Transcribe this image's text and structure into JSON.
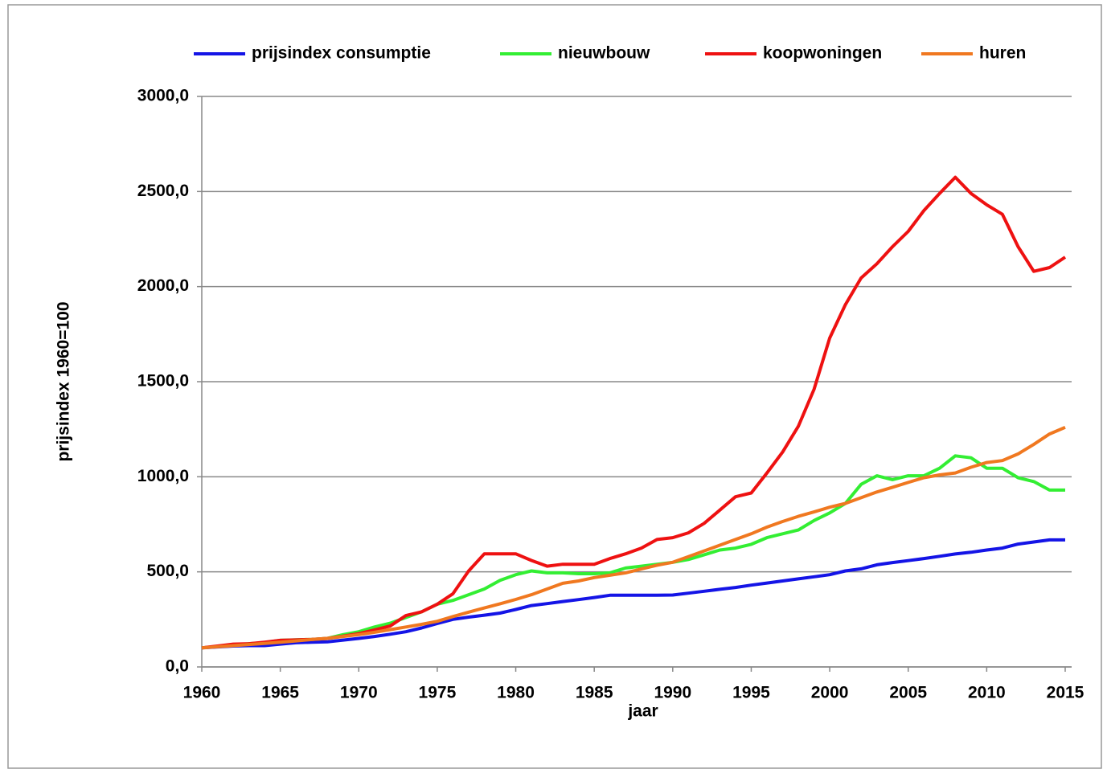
{
  "chart_data": {
    "type": "line",
    "xlabel": "jaar",
    "ylabel": "prijsindex 1960=100",
    "x": [
      1960,
      1961,
      1962,
      1963,
      1964,
      1965,
      1966,
      1967,
      1968,
      1969,
      1970,
      1971,
      1972,
      1973,
      1974,
      1975,
      1976,
      1977,
      1978,
      1979,
      1980,
      1981,
      1982,
      1983,
      1984,
      1985,
      1986,
      1987,
      1988,
      1989,
      1990,
      1991,
      1992,
      1993,
      1994,
      1995,
      1996,
      1997,
      1998,
      1999,
      2000,
      2001,
      2002,
      2003,
      2004,
      2005,
      2006,
      2007,
      2008,
      2009,
      2010,
      2011,
      2012,
      2013,
      2014,
      2015
    ],
    "series": [
      {
        "name": "prijsindex consumptie",
        "color": "#1414e6",
        "values": [
          100,
          105,
          110,
          112,
          112,
          120,
          127,
          130,
          132,
          141,
          150,
          160,
          172,
          185,
          205,
          228,
          250,
          262,
          272,
          283,
          302,
          323,
          333,
          344,
          354,
          365,
          377,
          377,
          377,
          377,
          378,
          388,
          398,
          408,
          418,
          430,
          441,
          452,
          463,
          474,
          485,
          505,
          516,
          537,
          549,
          559,
          570,
          582,
          594,
          603,
          615,
          625,
          646,
          657,
          668,
          668
        ]
      },
      {
        "name": "nieuwbouw",
        "color": "#33ee33",
        "values": [
          100,
          108,
          115,
          122,
          128,
          140,
          143,
          145,
          150,
          170,
          185,
          210,
          230,
          260,
          290,
          330,
          350,
          380,
          410,
          455,
          485,
          505,
          495,
          495,
          490,
          490,
          495,
          520,
          530,
          540,
          550,
          565,
          590,
          615,
          625,
          645,
          680,
          700,
          720,
          770,
          810,
          860,
          960,
          1005,
          985,
          1005,
          1005,
          1045,
          1110,
          1100,
          1045,
          1045,
          995,
          975,
          930,
          930
        ]
      },
      {
        "name": "koopwoningen",
        "color": "#ee1111",
        "values": [
          100,
          110,
          120,
          122,
          130,
          140,
          142,
          145,
          150,
          162,
          175,
          195,
          215,
          270,
          290,
          330,
          385,
          505,
          595,
          595,
          595,
          560,
          530,
          540,
          540,
          540,
          570,
          595,
          625,
          670,
          680,
          705,
          755,
          825,
          895,
          915,
          1020,
          1130,
          1265,
          1460,
          1730,
          1905,
          2045,
          2120,
          2210,
          2290,
          2400,
          2490,
          2575,
          2490,
          2430,
          2380,
          2210,
          2080,
          2100,
          2155
        ]
      },
      {
        "name": "huren",
        "color": "#f07820",
        "values": [
          100,
          106,
          112,
          118,
          124,
          130,
          137,
          144,
          150,
          160,
          170,
          182,
          196,
          210,
          224,
          240,
          265,
          288,
          310,
          332,
          355,
          380,
          410,
          440,
          452,
          470,
          482,
          495,
          515,
          535,
          550,
          580,
          610,
          640,
          670,
          700,
          735,
          765,
          792,
          815,
          840,
          860,
          890,
          920,
          945,
          970,
          995,
          1010,
          1020,
          1050,
          1075,
          1085,
          1120,
          1170,
          1225,
          1260
        ]
      }
    ],
    "xlim": [
      1960,
      2015
    ],
    "xticks": [
      1960,
      1965,
      1970,
      1975,
      1980,
      1985,
      1990,
      1995,
      2000,
      2005,
      2010,
      2015
    ],
    "ylim": [
      0,
      3000
    ],
    "yticks": [
      {
        "value": 0,
        "label": "0,0"
      },
      {
        "value": 500,
        "label": "500,0"
      },
      {
        "value": 1000,
        "label": "1000,0"
      },
      {
        "value": 1500,
        "label": "1500,0"
      },
      {
        "value": 2000,
        "label": "2000,0"
      },
      {
        "value": 2500,
        "label": "2500,0"
      },
      {
        "value": 3000,
        "label": "3000,0"
      }
    ],
    "grid": true,
    "legend": "top"
  }
}
